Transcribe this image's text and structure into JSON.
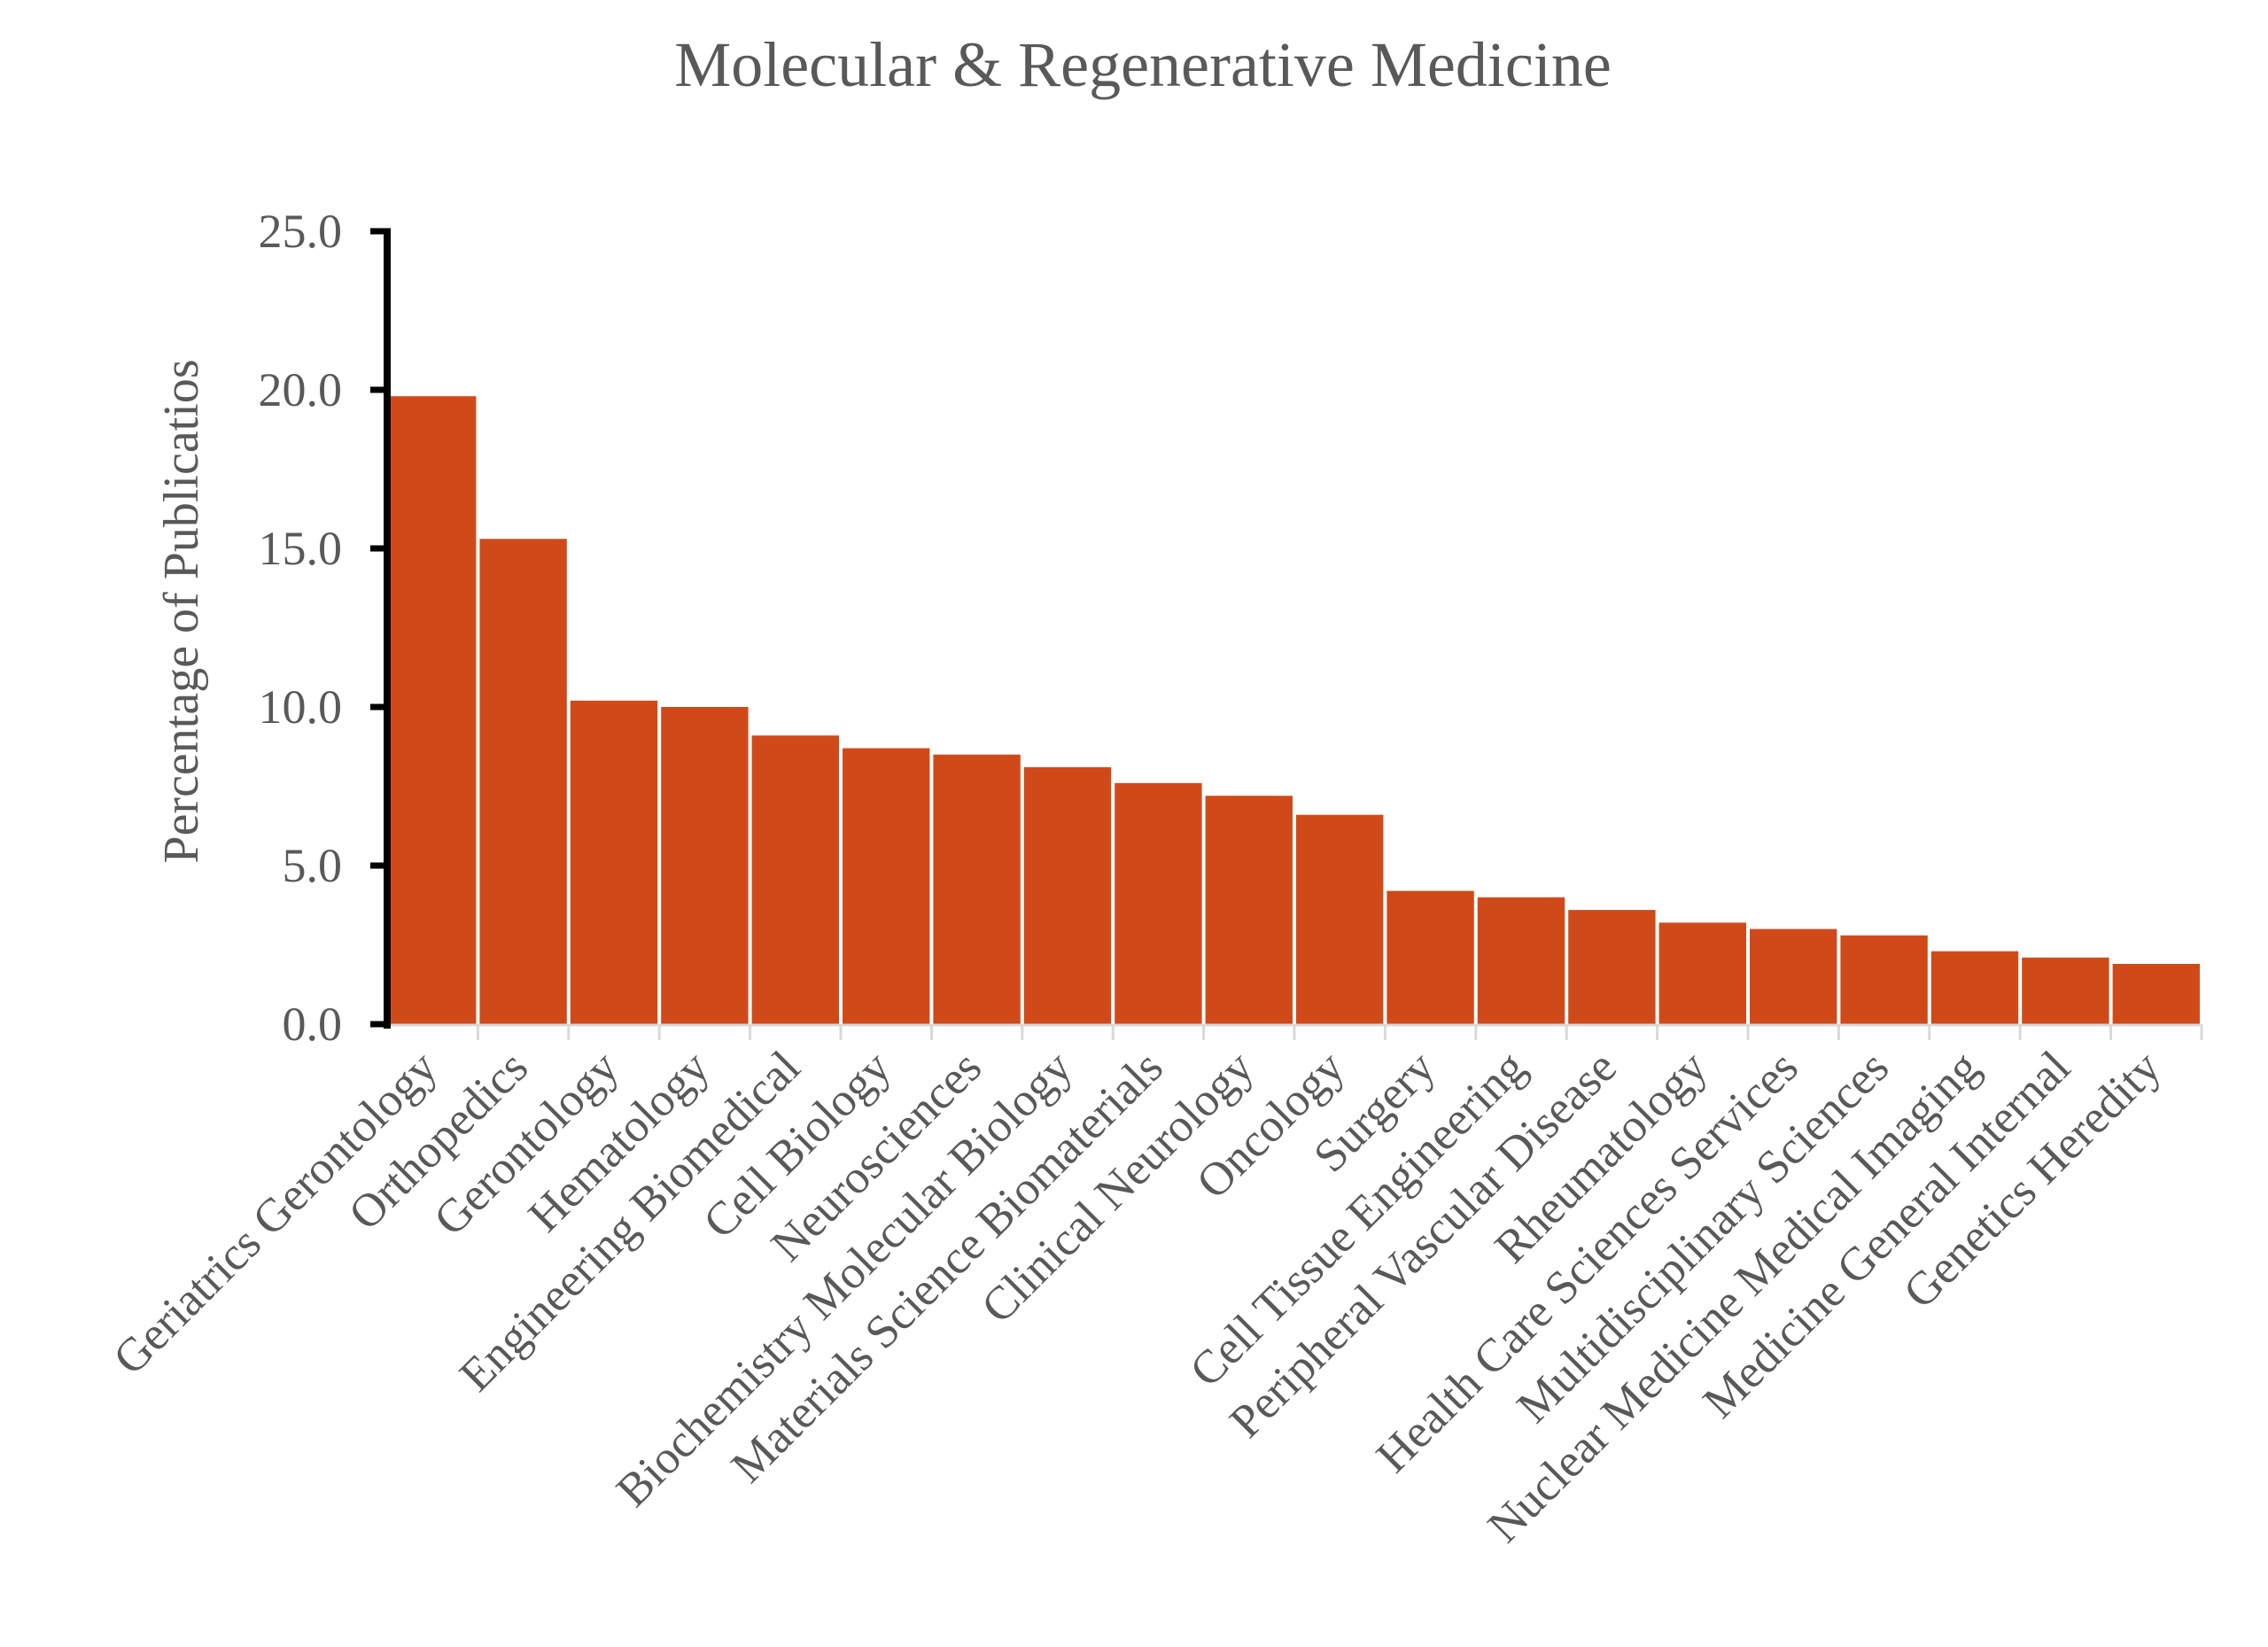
{
  "chart_data": {
    "type": "bar",
    "title": "Molecular & Regenerative Medicine",
    "xlabel": "",
    "ylabel": "Percentage of Publicatios",
    "ylim": [
      0,
      25
    ],
    "yticks": [
      "0.0",
      "5.0",
      "10.0",
      "15.0",
      "20.0",
      "25.0"
    ],
    "grid": false,
    "legend": "none",
    "categories": [
      "Geriatrics Gerontology",
      "Orthopedics",
      "Gerontology",
      "Hematology",
      "Engineering Biomedical",
      "Cell Biology",
      "Neurosciences",
      "Biochemistry Molecular Biology",
      "Materials Science Biomaterials",
      "Clinical Neurology",
      "Oncology",
      "Surgery",
      "Cell Tissue Engineering",
      "Peripheral Vascular Disease",
      "Rheumatology",
      "Health Care Sciences Services",
      "Multidisciplinary Sciences",
      "Nuclear Medicine Medical Imaging",
      "Medicine General Internal",
      "Genetics Heredity"
    ],
    "values": [
      19.8,
      15.3,
      10.2,
      10.0,
      9.1,
      8.7,
      8.5,
      8.1,
      7.6,
      7.2,
      6.6,
      4.2,
      4.0,
      3.6,
      3.2,
      3.0,
      2.8,
      2.3,
      2.1,
      1.9
    ],
    "colors": {
      "bar": "#D04A19",
      "axis": "#000000",
      "text": "#595959",
      "baseline": "#D9D9D9"
    }
  }
}
